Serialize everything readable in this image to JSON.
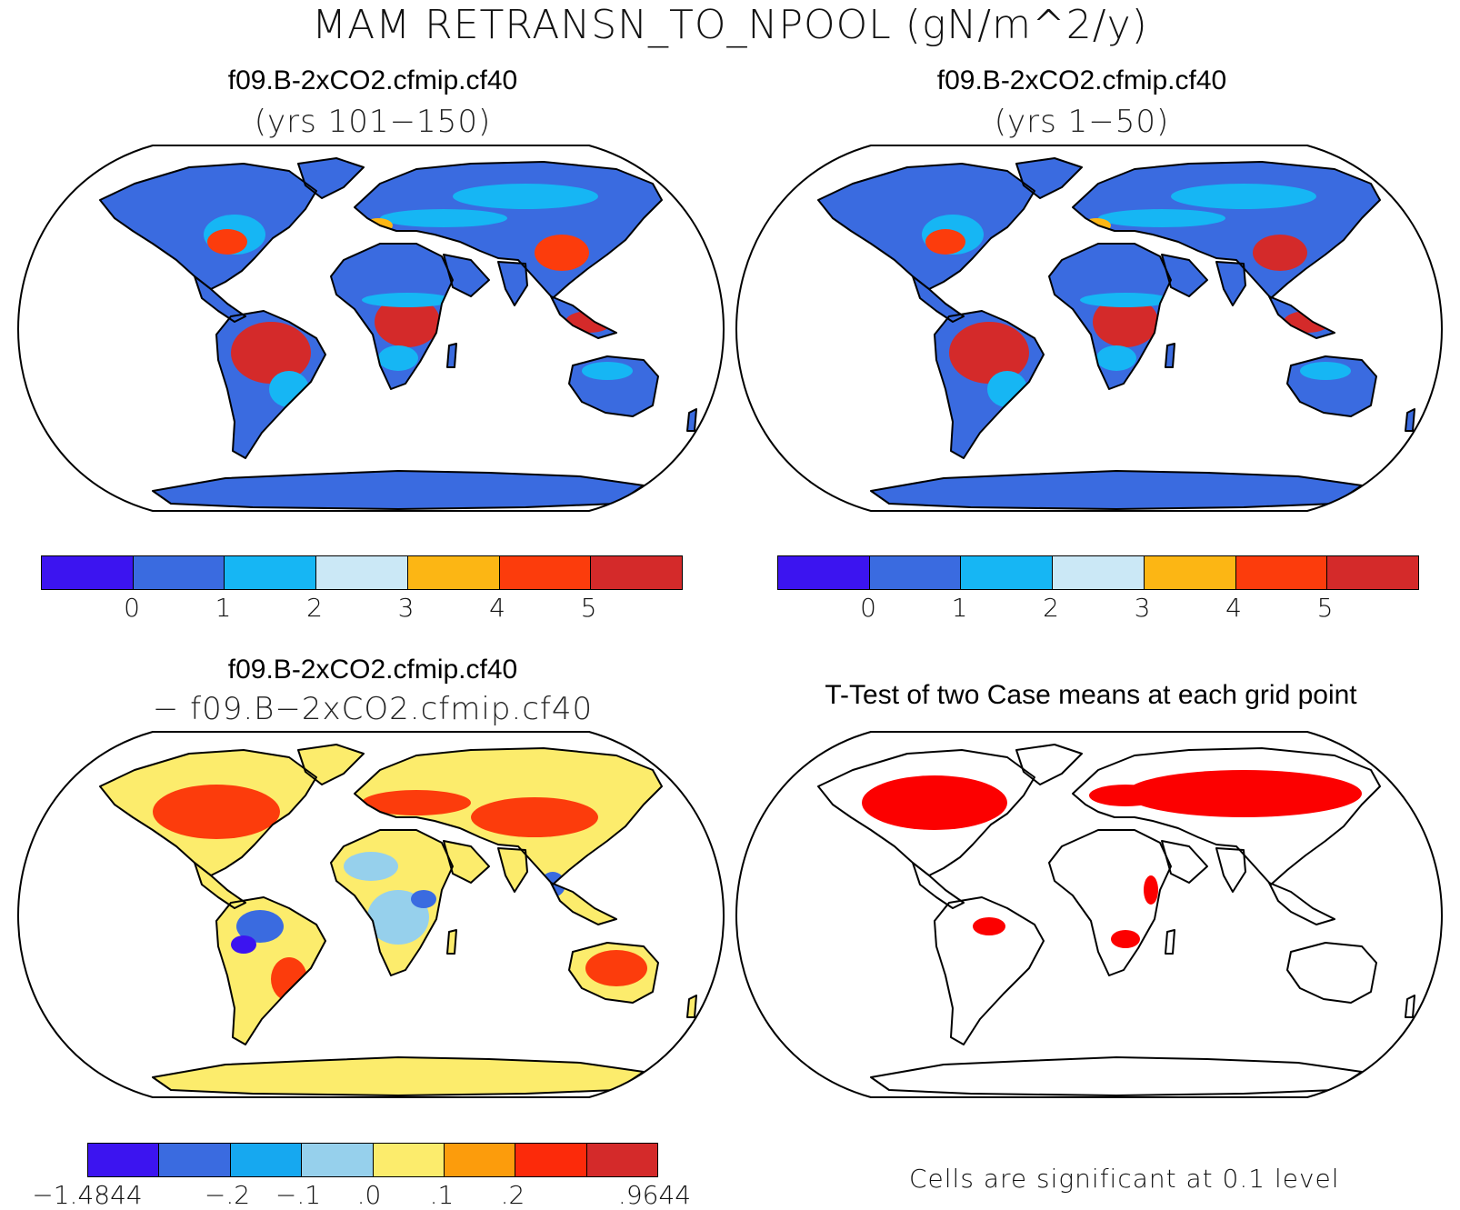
{
  "title": "MAM RETRANSN_TO_NPOOL (gN/m^2/y)",
  "panels": {
    "top_left": {
      "title": "f09.B-2xCO2.cfmip.cf40",
      "subtitle": "(yrs 101−150)"
    },
    "top_right": {
      "title": "f09.B-2xCO2.cfmip.cf40",
      "subtitle": "(yrs 1−50)"
    },
    "bottom_left": {
      "title": "f09.B-2xCO2.cfmip.cf40",
      "subtitle": "− f09.B−2xCO2.cfmip.cf40"
    },
    "bottom_right": {
      "title": "T-Test of two Case means at each grid point",
      "footer": "Cells are significant at 0.1 level"
    }
  },
  "colorbars": {
    "absolute": {
      "colors": [
        "#3c14f0",
        "#3a6be0",
        "#16b6f4",
        "#cbe8f6",
        "#fcb614",
        "#fc3c0c",
        "#d42a2a"
      ],
      "ticks": [
        "0",
        "1",
        "2",
        "3",
        "4",
        "5"
      ]
    },
    "difference": {
      "colors": [
        "#3c14f0",
        "#3a6be0",
        "#16a8f0",
        "#96d0ec",
        "#fcec6c",
        "#fc9c0c",
        "#fc2a0a",
        "#d42a2a"
      ],
      "ticks": [
        "−1.4844",
        "−.2",
        "−.1",
        ".0",
        ".1",
        ".2",
        ".9644"
      ]
    }
  },
  "map_colors": {
    "land_low": "#3a6be0",
    "land_mid": "#16b6f4",
    "land_high": "#fc3c0c",
    "land_max": "#d42a2a",
    "diff_base": "#fcec6c",
    "diff_pos": "#fc3c0c",
    "diff_neg": "#3a6be0",
    "significant": "#fc0000",
    "coast": "#000000"
  }
}
